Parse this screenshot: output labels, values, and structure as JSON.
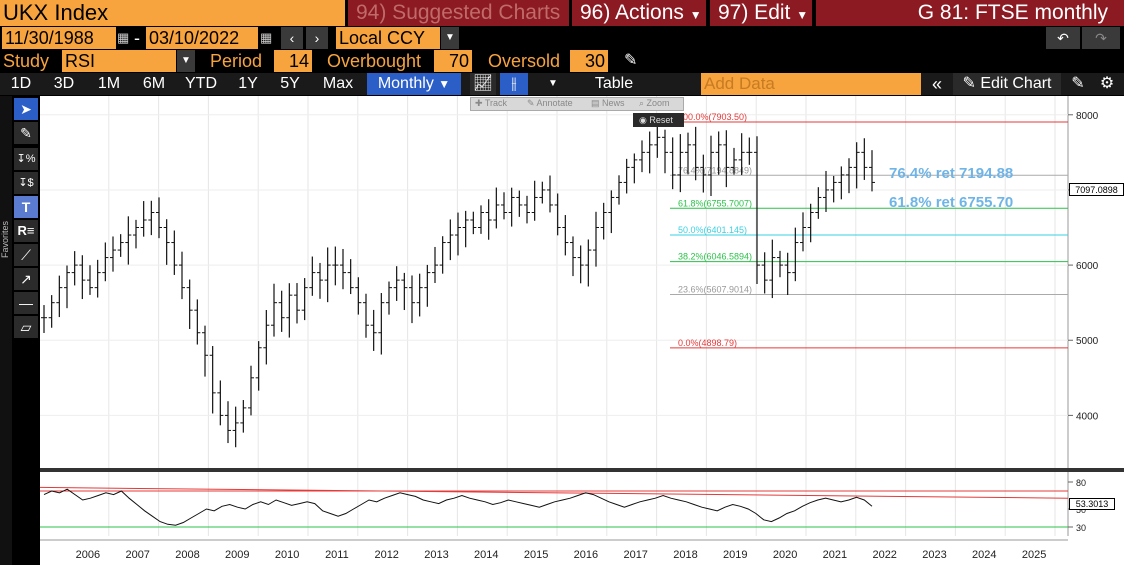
{
  "header": {
    "ticker": "UKX Index",
    "menu_suggested": "94) Suggested Charts",
    "menu_actions": "96) Actions",
    "menu_edit": "97) Edit",
    "title": "G 81: FTSE monthly"
  },
  "daterow": {
    "start_date": "11/30/1988",
    "end_date": "03/10/2022",
    "currency": "Local CCY"
  },
  "studyrow": {
    "study_label": "Study",
    "study_value": "RSI",
    "period_label": "Period",
    "period_value": "14",
    "overbought_label": "Overbought",
    "overbought_value": "70",
    "oversold_label": "Oversold",
    "oversold_value": "30"
  },
  "toolbar": {
    "periods": [
      "1D",
      "3D",
      "1M",
      "6M",
      "YTD",
      "1Y",
      "5Y",
      "Max"
    ],
    "frequency": "Monthly",
    "table_label": "Table",
    "add_data_placeholder": "Add Data",
    "edit_chart": "Edit Chart"
  },
  "chart_tools": {
    "track": "Track",
    "annotate": "Annotate",
    "news": "News",
    "zoom": "Zoom",
    "reset": "Reset"
  },
  "side": {
    "favorites": "Favorites"
  },
  "chart_data": [
    {
      "type": "ohlc",
      "y_ticks": [
        4000,
        5000,
        6000,
        7000,
        8000
      ],
      "ylim": [
        3300,
        8250
      ],
      "x_labels": [
        "2006",
        "2007",
        "2008",
        "2009",
        "2010",
        "2011",
        "2012",
        "2013",
        "2014",
        "2015",
        "2016",
        "2017",
        "2018",
        "2019",
        "2020",
        "2021",
        "2022",
        "2023",
        "2024",
        "2025"
      ],
      "last_value_label": "7097.0898",
      "fib_levels": [
        {
          "label": "100.0%(7903.50)",
          "value": 7903.5,
          "color": "#e43a3a"
        },
        {
          "label": "76.4%(7194.8849)",
          "value": 7194.88,
          "color": "#aaaaaa"
        },
        {
          "label": "61.8%(6755.7007)",
          "value": 6755.7,
          "color": "#2cc14a"
        },
        {
          "label": "50.0%(6401.145)",
          "value": 6401.145,
          "color": "#3ad1e0"
        },
        {
          "label": "38.2%(6046.5894)",
          "value": 6046.59,
          "color": "#2cc14a"
        },
        {
          "label": "23.6%(5607.9014)",
          "value": 5607.9,
          "color": "#aaaaaa"
        },
        {
          "label": "0.0%(4898.79)",
          "value": 4898.79,
          "color": "#e43a3a"
        }
      ],
      "annotations": [
        {
          "text": "76.4% ret 7194.88",
          "color": "#6fb4e6"
        },
        {
          "text": "61.8% ret 6755.70",
          "color": "#6fb4e6"
        }
      ],
      "close_series": [
        5300,
        5500,
        5700,
        5900,
        6000,
        5800,
        5700,
        5900,
        6100,
        6200,
        6300,
        6400,
        6500,
        6600,
        6700,
        6500,
        6300,
        6000,
        5700,
        5400,
        5100,
        4800,
        4300,
        4000,
        3800,
        3900,
        4100,
        4500,
        4900,
        5200,
        5500,
        5300,
        5600,
        5400,
        5700,
        5900,
        5800,
        6000,
        6000,
        5900,
        5700,
        5500,
        5200,
        5100,
        5500,
        5700,
        5800,
        5700,
        5500,
        5700,
        5900,
        6000,
        6300,
        6400,
        6500,
        6600,
        6500,
        6700,
        6600,
        6800,
        6700,
        6900,
        6800,
        6700,
        6900,
        7000,
        6800,
        6500,
        6300,
        6100,
        6000,
        6200,
        6500,
        6700,
        6900,
        7100,
        7300,
        7400,
        7500,
        7600,
        7700,
        7500,
        7200,
        7500,
        7600,
        7300,
        7200,
        7500,
        7600,
        7300,
        7400,
        7500,
        7500,
        6000,
        5800,
        6100,
        6000,
        5900,
        6300,
        6500,
        6700,
        6900,
        7000,
        7100,
        7200,
        7300,
        7500,
        7300,
        7100
      ],
      "series": [
        {
          "name": "UKX Index",
          "values": []
        }
      ]
    },
    {
      "type": "line",
      "y_ticks": [
        30,
        50,
        80
      ],
      "ylim": [
        20,
        90
      ],
      "last_value_label": "53.3013",
      "overbought": 70,
      "oversold": 30,
      "rsi_series": [
        66,
        70,
        68,
        72,
        66,
        60,
        62,
        65,
        68,
        66,
        70,
        62,
        55,
        48,
        42,
        36,
        33,
        32,
        35,
        40,
        45,
        50,
        48,
        53,
        55,
        52,
        50,
        55,
        58,
        55,
        60,
        57,
        54,
        56,
        58,
        56,
        48,
        45,
        42,
        45,
        50,
        55,
        60,
        58,
        62,
        65,
        68,
        66,
        64,
        60,
        58,
        56,
        60,
        62,
        65,
        62,
        60,
        58,
        55,
        57,
        60,
        58,
        56,
        54,
        52,
        55,
        58,
        60,
        62,
        65,
        68,
        66,
        62,
        58,
        55,
        52,
        55,
        58,
        60,
        62,
        65,
        62,
        60,
        58,
        55,
        52,
        50,
        48,
        52,
        55,
        53,
        50,
        45,
        38,
        36,
        40,
        45,
        48,
        53,
        57,
        60,
        62,
        60,
        58,
        60,
        63,
        60,
        53
      ]
    }
  ]
}
